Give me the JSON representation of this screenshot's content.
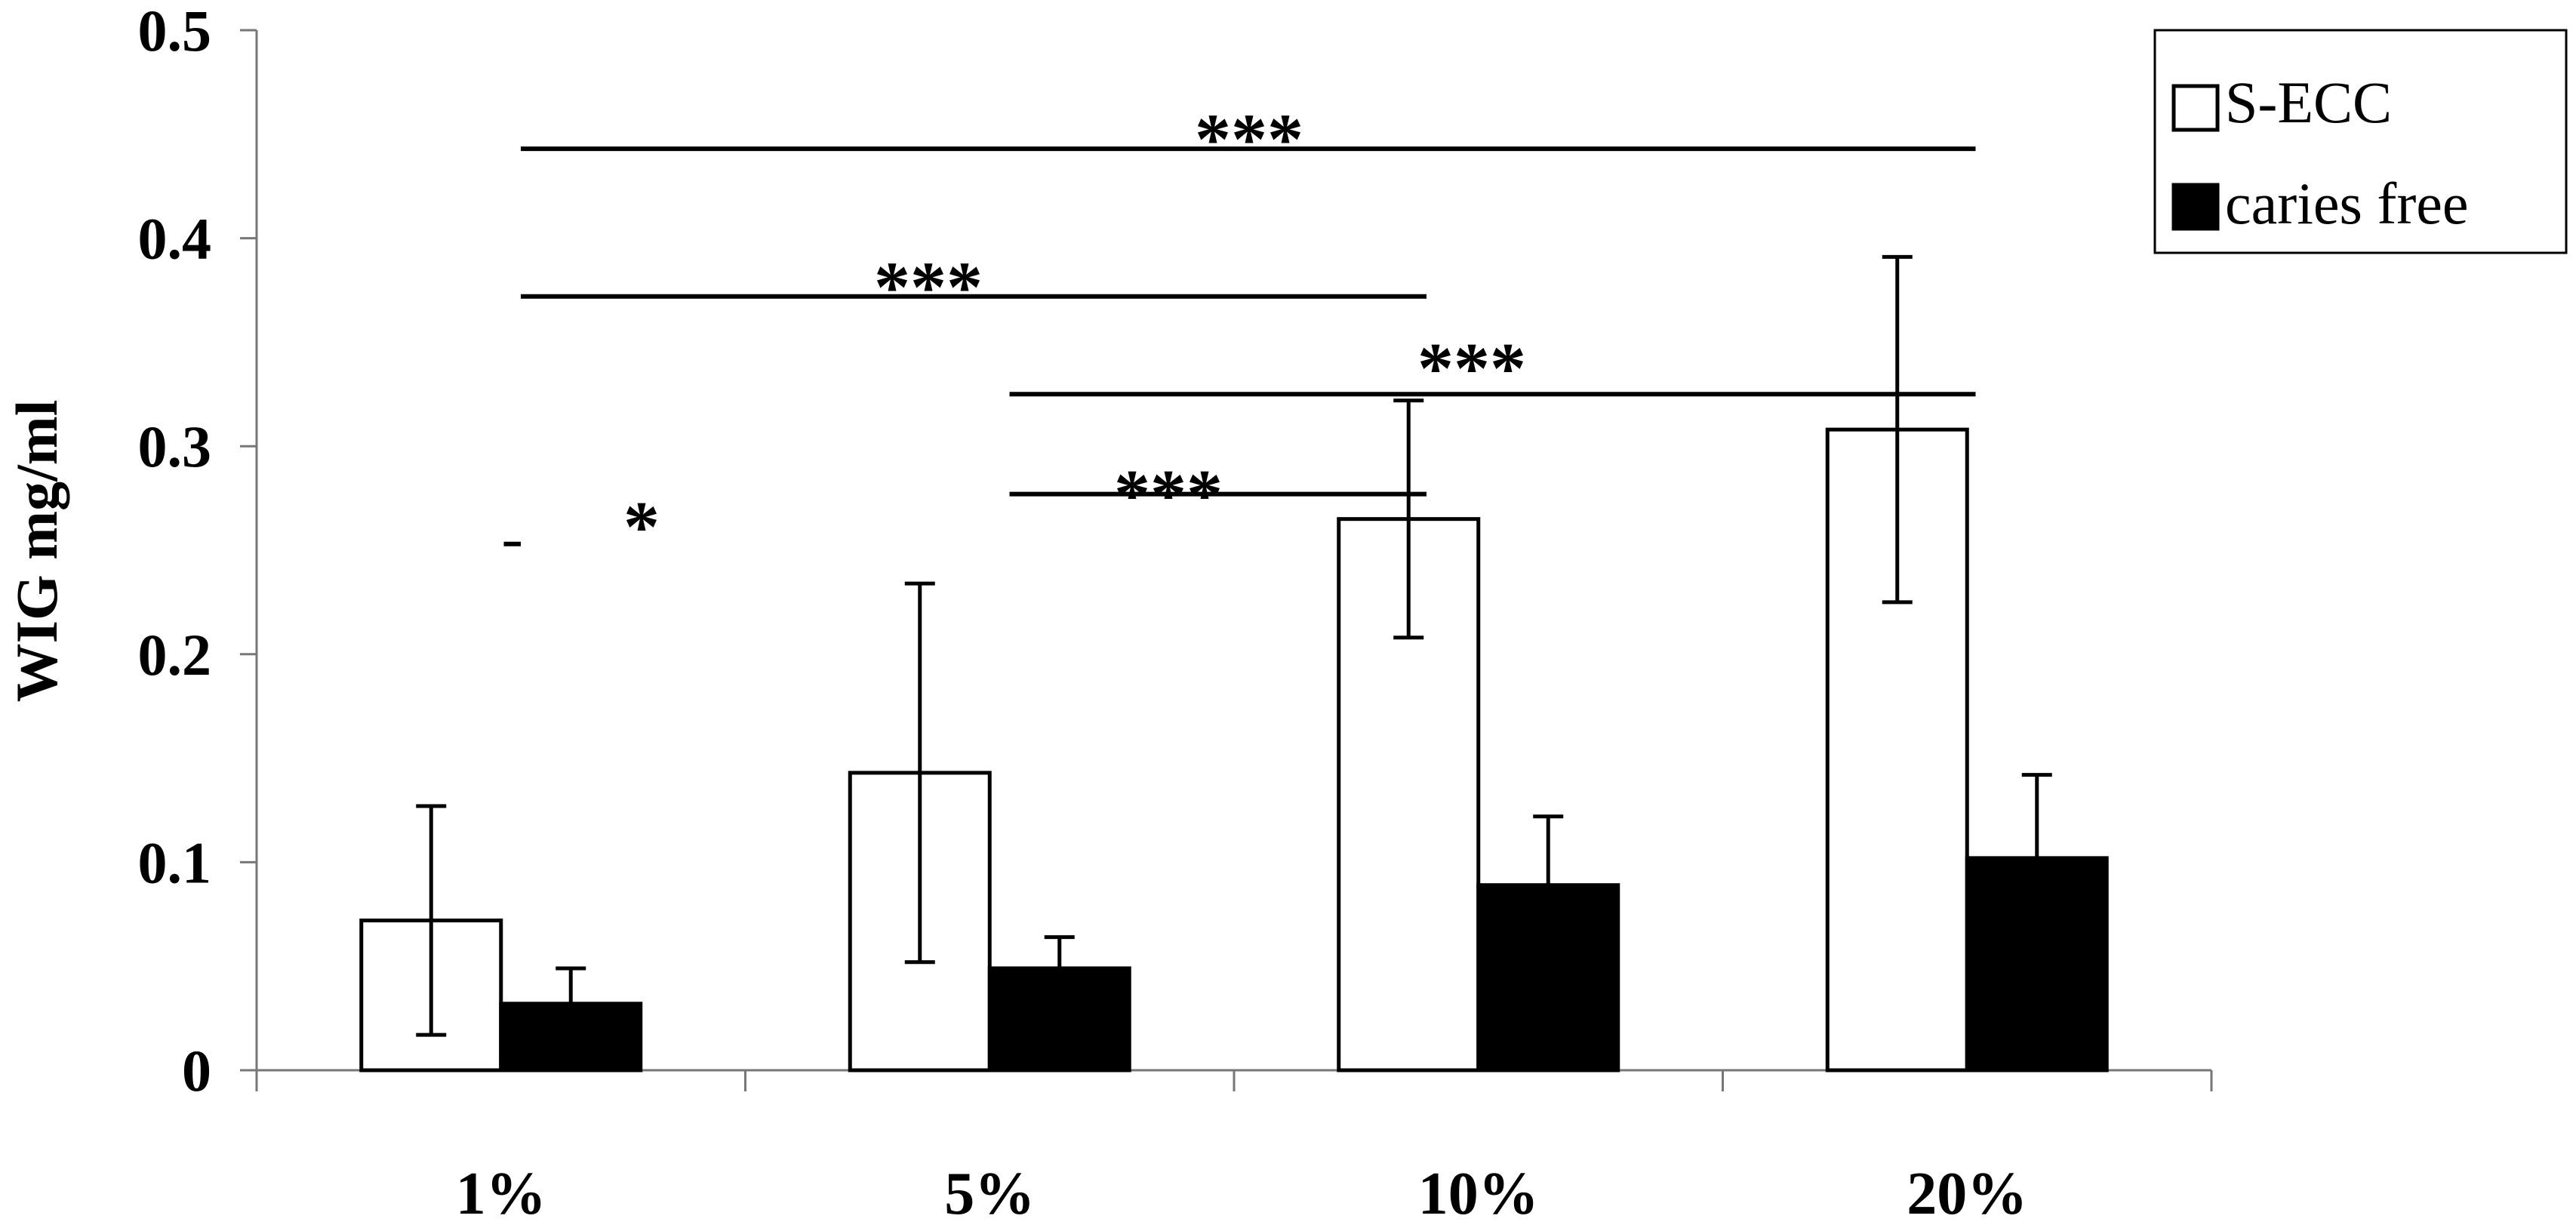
{
  "chart_data": {
    "type": "bar",
    "title": "",
    "xlabel": "",
    "ylabel": "WIG mg/ml",
    "ylim": [
      0,
      0.5
    ],
    "yticks": [
      0,
      0.1,
      0.2,
      0.3,
      0.4,
      0.5
    ],
    "ytick_labels": [
      "0",
      "0.1",
      "0.2",
      "0.3",
      "0.4",
      "0.5"
    ],
    "categories": [
      "1%",
      "5%",
      "10%",
      "20%"
    ],
    "grid": false,
    "legend_position": "top-right",
    "series": [
      {
        "name": "S-ECC",
        "fill": "#ffffff",
        "values": [
          0.072,
          0.143,
          0.265,
          0.308
        ],
        "errors": [
          0.055,
          0.091,
          0.057,
          0.083
        ]
      },
      {
        "name": "caries free",
        "fill": "#000000",
        "values": [
          0.032,
          0.049,
          0.089,
          0.102
        ],
        "errors": [
          0.017,
          0.015,
          0.033,
          0.04
        ]
      }
    ],
    "significance": [
      {
        "from": 0,
        "to": 3,
        "y": 0.443,
        "label": "***"
      },
      {
        "from": 0,
        "to": 2,
        "y": 0.372,
        "label": "***"
      },
      {
        "from": 1,
        "to": 3,
        "y": 0.325,
        "label": "***"
      },
      {
        "from": 1,
        "to": 2,
        "y": 0.277,
        "label": "***"
      },
      {
        "from": 0,
        "to": 1,
        "y": 0.253,
        "label": "*"
      }
    ]
  }
}
